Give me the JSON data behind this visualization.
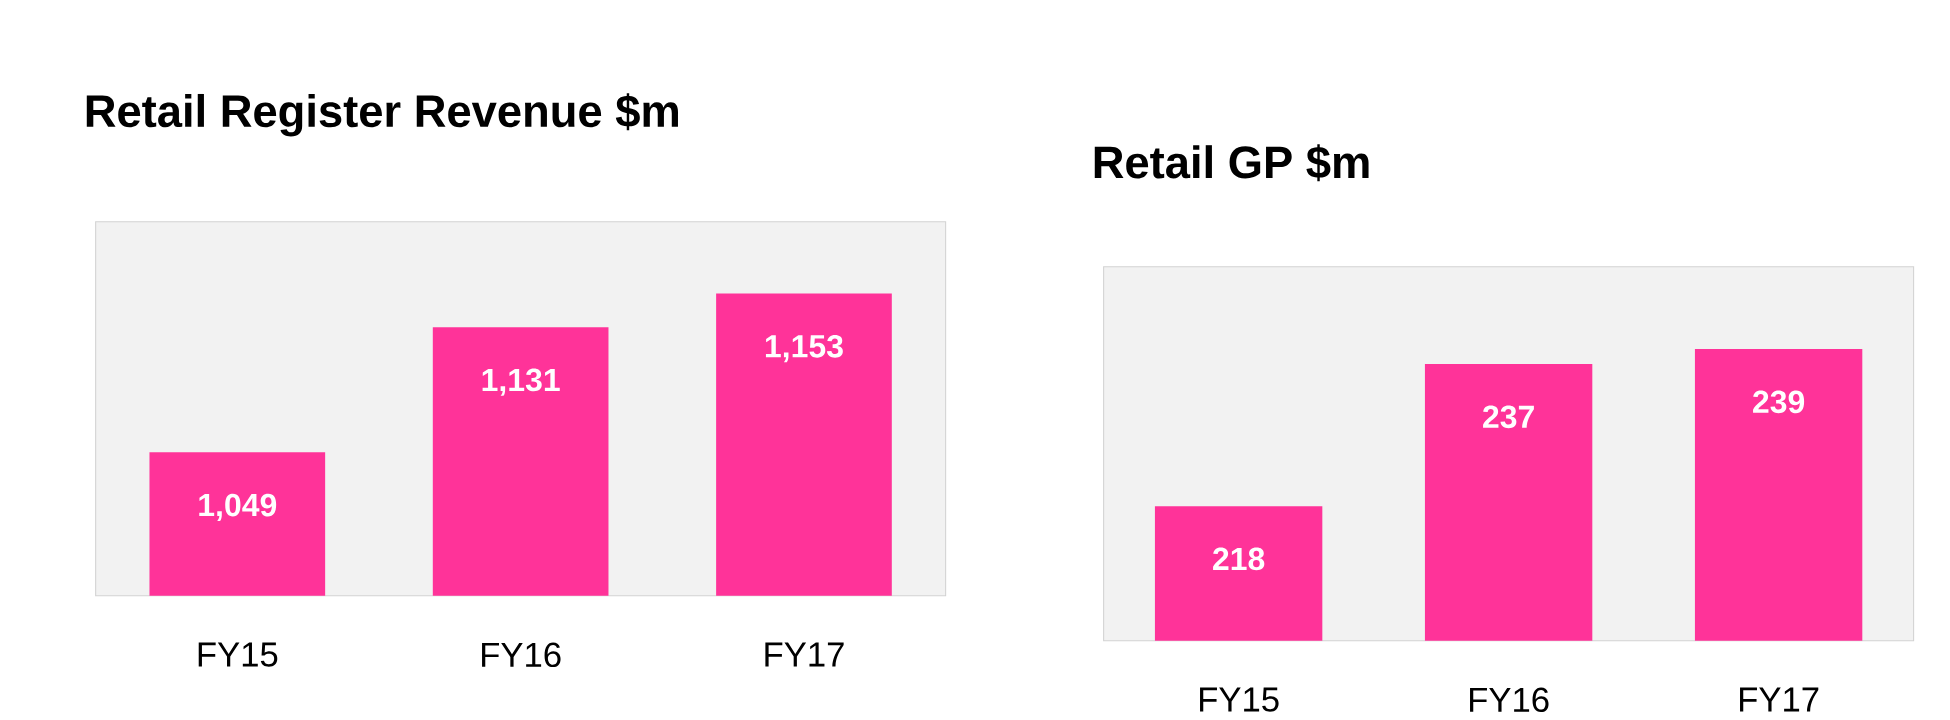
{
  "chart_data": [
    {
      "type": "bar",
      "title": "Retail Register Revenue $m",
      "categories": [
        "FY15",
        "FY16",
        "FY17"
      ],
      "values": [
        1049,
        1131,
        1153
      ],
      "value_labels": [
        "1,049",
        "1,131",
        "1,153"
      ],
      "color": "#ff3399",
      "ylim": [
        955,
        1200
      ],
      "tick_labels": "x"
    },
    {
      "type": "bar",
      "title": "Retail GP $m",
      "categories": [
        "FY15",
        "FY16",
        "FY17"
      ],
      "values": [
        218,
        237,
        239
      ],
      "value_labels": [
        "218",
        "237",
        "239"
      ],
      "color": "#ff3399",
      "ylim": [
        200,
        250
      ],
      "tick_labels": "x"
    }
  ]
}
